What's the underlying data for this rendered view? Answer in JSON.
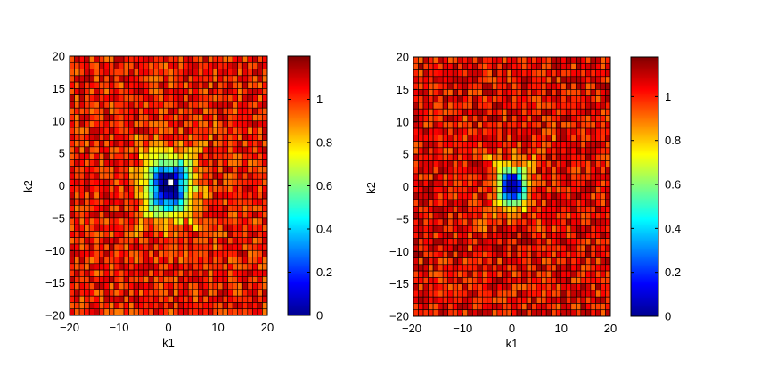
{
  "chart_data": [
    {
      "type": "heatmap",
      "title": "",
      "xlabel": "k1",
      "ylabel": "k2",
      "xlim": [
        -20,
        20
      ],
      "ylim": [
        -20,
        20
      ],
      "grid_cells": "1x1 unit cells from -20 to 20 on both axes",
      "x_ticks": [
        "−20",
        "−10",
        "0",
        "10",
        "20"
      ],
      "x_tick_values": [
        -20,
        -10,
        0,
        10,
        20
      ],
      "y_ticks": [
        "20",
        "15",
        "10",
        "5",
        "0",
        "−5",
        "−10",
        "−15",
        "−20"
      ],
      "y_tick_values": [
        20,
        15,
        10,
        5,
        0,
        -5,
        -10,
        -15,
        -20
      ],
      "colormap": "jet",
      "clim": [
        0,
        1.2
      ],
      "colorbar_ticks": [
        "0",
        "0.2",
        "0.4",
        "0.6",
        "0.8",
        "1"
      ],
      "colorbar_tick_values": [
        0,
        0.2,
        0.4,
        0.6,
        0.8,
        1
      ],
      "value_description": "values near 1.0–1.15 across the field; dip to ~0.1 at the origin rising through cyan/yellow within radius ~5, with slightly lower values along the diagonals",
      "center_min": 0.08,
      "background_value": 1.02,
      "dip_radius": 3.0,
      "diagonal_strength": 0.18,
      "center_cell_blank": true
    },
    {
      "type": "heatmap",
      "title": "",
      "xlabel": "k1",
      "ylabel": "k2",
      "xlim": [
        -20,
        20
      ],
      "ylim": [
        -20,
        20
      ],
      "grid_cells": "1x1 unit cells from -20 to 20 on both axes",
      "x_ticks": [
        "−20",
        "−10",
        "0",
        "10",
        "20"
      ],
      "x_tick_values": [
        -20,
        -10,
        0,
        10,
        20
      ],
      "y_ticks": [
        "20",
        "15",
        "10",
        "5",
        "0",
        "−5",
        "−10",
        "−15",
        "−20"
      ],
      "y_tick_values": [
        20,
        15,
        10,
        5,
        0,
        -5,
        -10,
        -15,
        -20
      ],
      "colormap": "jet",
      "clim": [
        0,
        1.18
      ],
      "colorbar_ticks": [
        "0",
        "0.2",
        "0.4",
        "0.6",
        "0.8",
        "1"
      ],
      "colorbar_tick_values": [
        0,
        0.2,
        0.4,
        0.6,
        0.8,
        1
      ],
      "value_description": "values near 1.0–1.15 across the field; smaller dip to ~0.1 at the origin, narrower cyan/yellow halo, weak diagonal streaks",
      "center_min": 0.1,
      "background_value": 1.03,
      "dip_radius": 2.0,
      "diagonal_strength": 0.14,
      "center_cell_blank": false
    }
  ]
}
